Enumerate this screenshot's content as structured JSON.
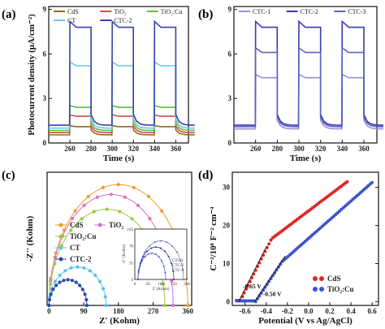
{
  "chart_data": [
    {
      "panel": "(a)",
      "type": "line",
      "xlabel": "Time (s)",
      "ylabel": "Photocurrent density (μA/cm⁻²)",
      "xlim": [
        240,
        372
      ],
      "ylim": [
        0,
        9.2
      ],
      "xticks": [
        "260",
        "280",
        "300",
        "320",
        "340",
        "360"
      ],
      "yticks": [
        "0",
        "3",
        "6",
        "9"
      ],
      "light_cycles": [
        [
          260,
          280
        ],
        [
          300,
          320
        ],
        [
          340,
          360
        ]
      ],
      "series": [
        {
          "name": "CdS",
          "color": "#8a6d1a",
          "on": 1.1,
          "off": 0.55
        },
        {
          "name": "TiO₂",
          "color": "#d84a4a",
          "on": 1.8,
          "off": 0.7
        },
        {
          "name": "TiO₂:Cu",
          "color": "#5fbf3a",
          "on": 2.4,
          "off": 0.85
        },
        {
          "name": "CT",
          "color": "#6ec7e8",
          "on": 5.2,
          "off": 1.0
        },
        {
          "name": "CTC-2",
          "color": "#3543a8",
          "on": 7.8,
          "off": 1.2
        }
      ]
    },
    {
      "panel": "(b)",
      "type": "line",
      "xlabel": "Time (s)",
      "ylabel": "",
      "xlim": [
        240,
        372
      ],
      "ylim": [
        0,
        9.2
      ],
      "xticks": [
        "260",
        "280",
        "300",
        "320",
        "340",
        "360"
      ],
      "yticks": [
        "0",
        "3",
        "6",
        "9"
      ],
      "light_cycles": [
        [
          260,
          280
        ],
        [
          300,
          320
        ],
        [
          340,
          360
        ]
      ],
      "series": [
        {
          "name": "CTC-1",
          "color": "#9a8fd8",
          "on": 4.4,
          "off": 0.95
        },
        {
          "name": "CTC-2",
          "color": "#3a3ab0",
          "on": 7.8,
          "off": 1.2
        },
        {
          "name": "CTC-3",
          "color": "#5a62c4",
          "on": 6.1,
          "off": 1.1
        }
      ]
    },
    {
      "panel": "(c)",
      "type": "scatter",
      "xlabel": "Z' (Kohm)",
      "ylabel": "-Z'' (Kohm)",
      "xlim": [
        -5,
        370
      ],
      "ylim": [
        0,
        270
      ],
      "xticks": [
        "0",
        "90",
        "180",
        "270",
        "360"
      ],
      "series": [
        {
          "name": "CdS",
          "color": "#f39a2a",
          "marker": "circle",
          "R": 500,
          "cx": 250
        },
        {
          "name": "TiO₂",
          "color": "#d872c8",
          "marker": "circle",
          "R": 440,
          "cx": 225
        },
        {
          "name": "TiO₂:Cu",
          "color": "#9ccb3a",
          "marker": "circle",
          "R": 400,
          "cx": 195
        },
        {
          "name": "CT",
          "color": "#5bc3e6",
          "marker": "circle",
          "R": 205,
          "cx": 75
        },
        {
          "name": "CTC-2",
          "color": "#2a4ab0",
          "marker": "circle",
          "R": 110,
          "cx": 50
        }
      ],
      "inset": {
        "xlabel": "Z' (Kohm)",
        "ylabel": "-Z'' (Kohm)",
        "xticks": [
          "0",
          "50",
          "100",
          "150",
          "200"
        ],
        "yticks": [
          "0",
          "35",
          "70",
          "105"
        ],
        "series": [
          {
            "name": "CTC-1",
            "color": "#6a6ad0"
          },
          {
            "name": "CTC-2",
            "color": "#2a2a90"
          },
          {
            "name": "CTC-3",
            "color": "#4a5ac0"
          }
        ]
      }
    },
    {
      "panel": "(d)",
      "type": "scatter",
      "xlabel": "Potential (V vs Ag/AgCl)",
      "ylabel": "C⁻²/10⁸ F⁻² cm⁻⁴",
      "xlim": [
        -0.72,
        0.66
      ],
      "ylim": [
        -1,
        34
      ],
      "xticks": [
        "-0.6",
        "-0.4",
        "-0.2",
        "0.0",
        "0.2",
        "0.4",
        "0.6"
      ],
      "yticks": [
        "0",
        "10",
        "20",
        "30"
      ],
      "series": [
        {
          "name": "CdS",
          "color": "#e02424",
          "flatband": -0.65
        },
        {
          "name": "TiO₂:Cu",
          "color": "#3a54c8",
          "flatband": -0.5
        }
      ],
      "annotations": [
        "-0.65 V",
        "-0.50 V"
      ]
    }
  ]
}
